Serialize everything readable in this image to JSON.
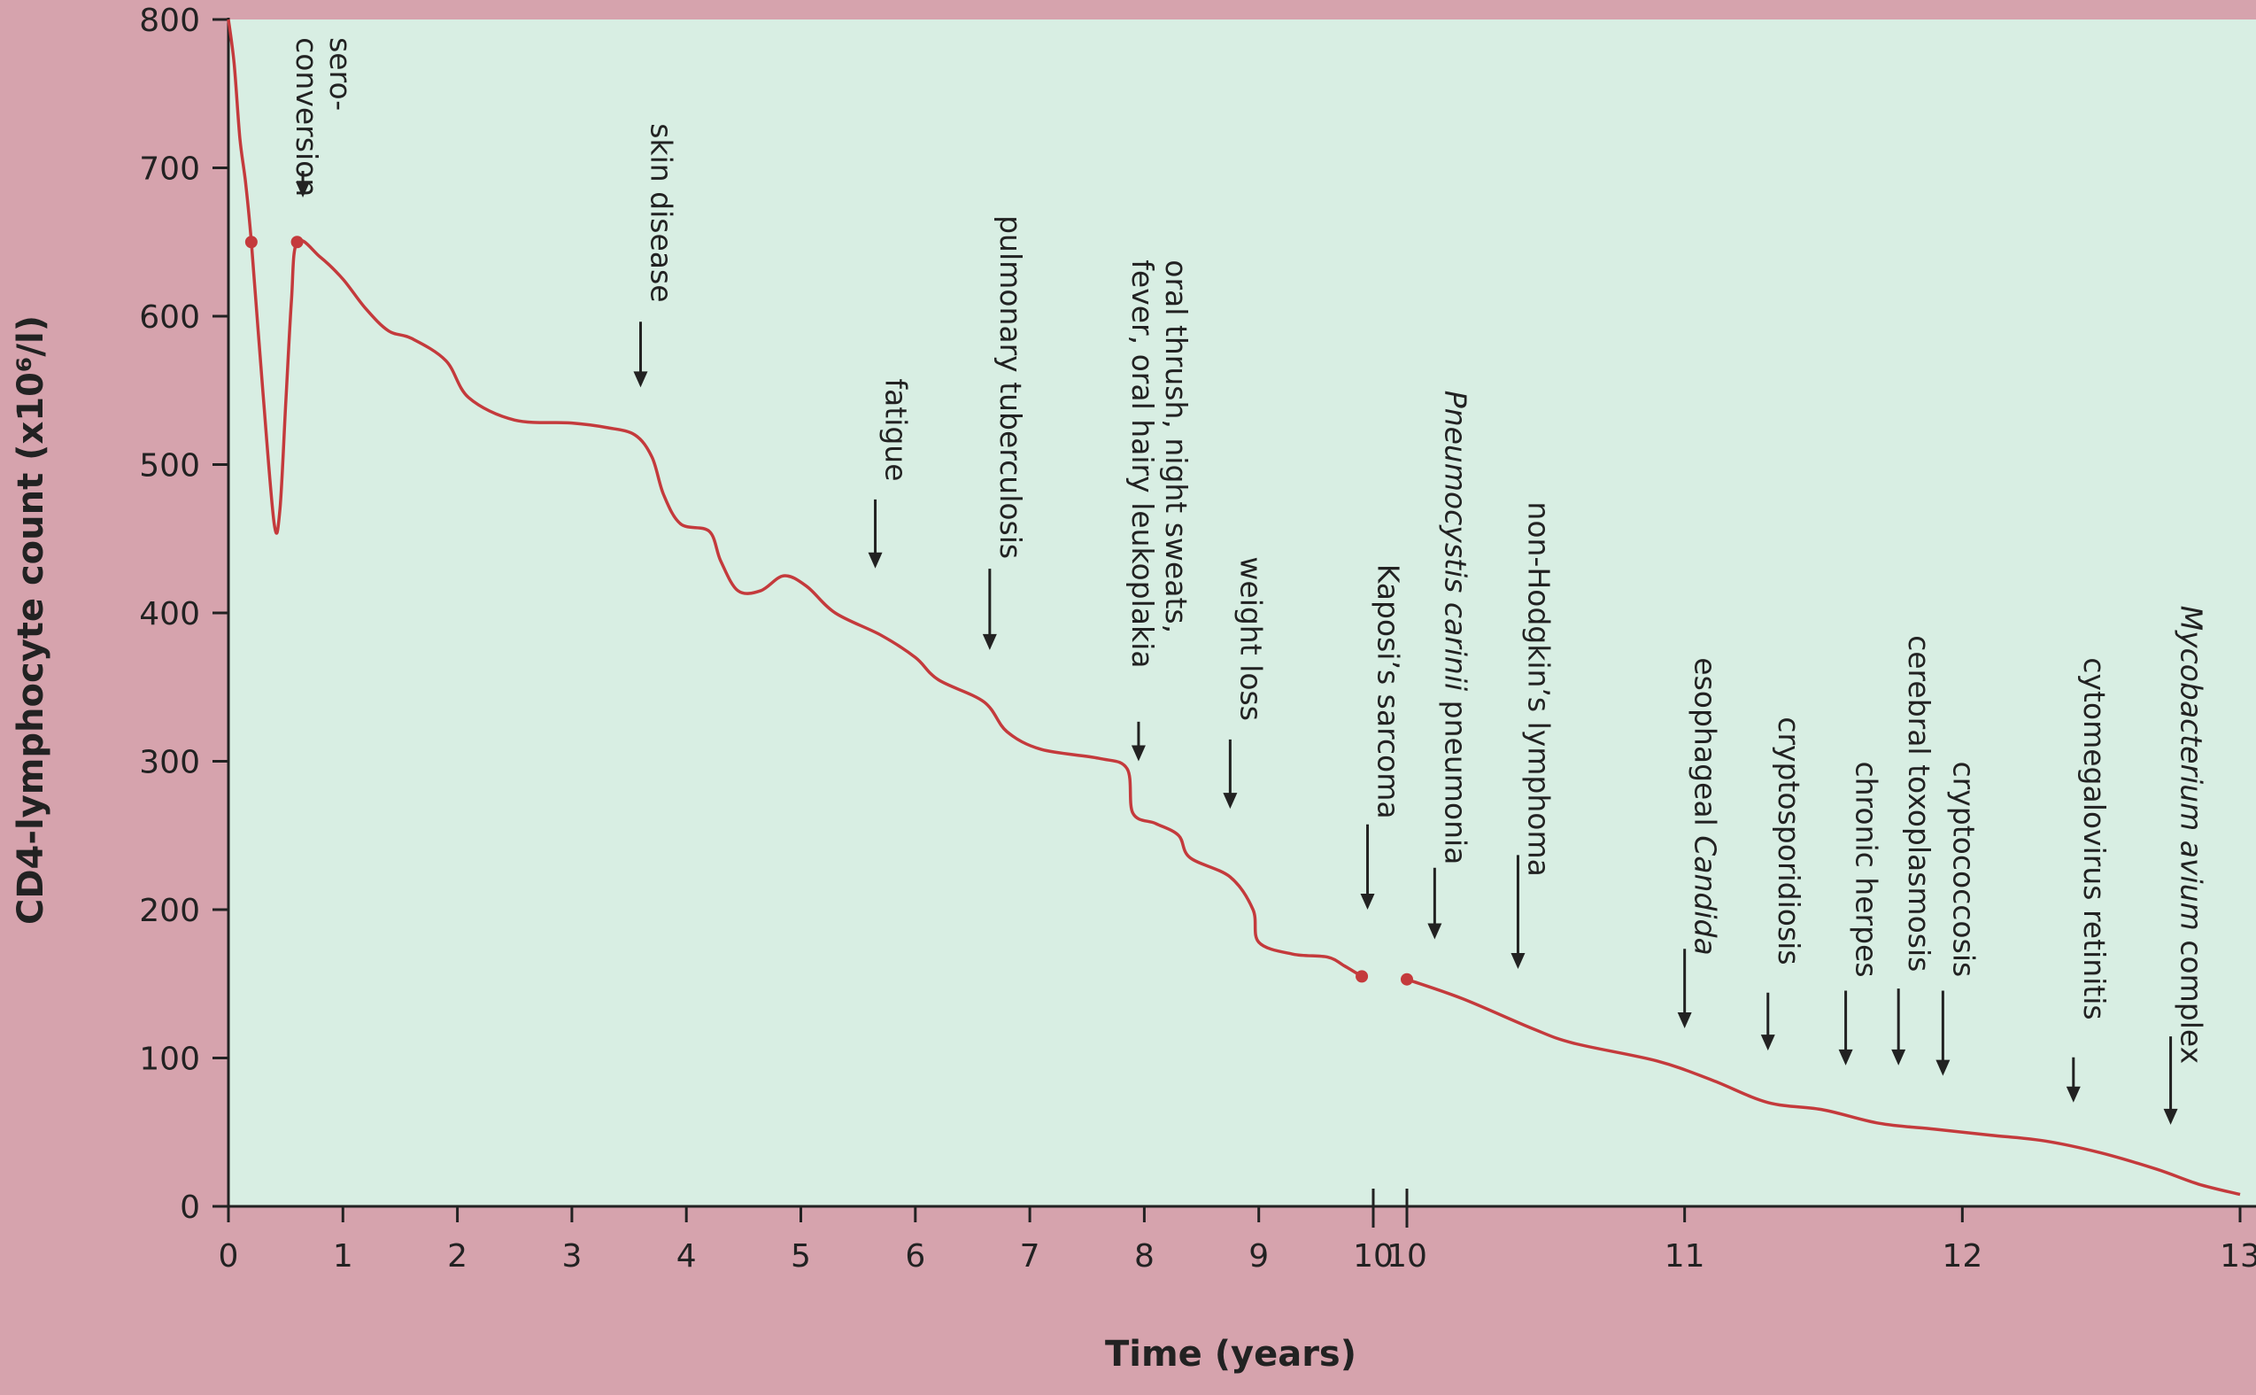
{
  "chart_data": {
    "type": "line",
    "xlabel": "Time (years)",
    "ylabel": "CD4-lymphocyte count (x10⁶/l)",
    "ylim": [
      0,
      800
    ],
    "yticks": [
      "0",
      "100",
      "200",
      "300",
      "400",
      "500",
      "600",
      "700",
      "800"
    ],
    "x_segment_1": {
      "xlim": [
        0,
        10
      ],
      "ticks": [
        "0",
        "1",
        "2",
        "3",
        "4",
        "5",
        "6",
        "7",
        "8",
        "9",
        "10"
      ]
    },
    "x_segment_2": {
      "xlim": [
        10,
        13
      ],
      "ticks": [
        "10",
        "11",
        "12",
        "13"
      ]
    },
    "colors": {
      "line": "#c43a3c",
      "plot_bg": "#d8eee3",
      "frame_bg": "#d6a3ad",
      "axis": "#222222"
    },
    "series": [
      {
        "segment": 1,
        "points": [
          [
            0.0,
            800
          ],
          [
            0.05,
            770
          ],
          [
            0.1,
            720
          ],
          [
            0.15,
            690
          ],
          [
            0.2,
            650
          ],
          [
            0.3,
            550
          ],
          [
            0.4,
            460
          ],
          [
            0.45,
            470
          ],
          [
            0.5,
            540
          ],
          [
            0.55,
            610
          ],
          [
            0.6,
            650
          ],
          [
            0.8,
            640
          ],
          [
            1.0,
            625
          ],
          [
            1.2,
            605
          ],
          [
            1.4,
            590
          ],
          [
            1.6,
            585
          ],
          [
            1.9,
            570
          ],
          [
            2.1,
            545
          ],
          [
            2.5,
            530
          ],
          [
            3.0,
            528
          ],
          [
            3.3,
            525
          ],
          [
            3.55,
            520
          ],
          [
            3.7,
            505
          ],
          [
            3.8,
            480
          ],
          [
            3.95,
            460
          ],
          [
            4.2,
            455
          ],
          [
            4.3,
            435
          ],
          [
            4.45,
            415
          ],
          [
            4.65,
            415
          ],
          [
            4.85,
            425
          ],
          [
            5.05,
            418
          ],
          [
            5.3,
            400
          ],
          [
            5.7,
            385
          ],
          [
            6.0,
            370
          ],
          [
            6.2,
            355
          ],
          [
            6.6,
            340
          ],
          [
            6.8,
            320
          ],
          [
            7.1,
            308
          ],
          [
            7.6,
            302
          ],
          [
            7.85,
            295
          ],
          [
            7.9,
            265
          ],
          [
            8.1,
            258
          ],
          [
            8.3,
            250
          ],
          [
            8.4,
            235
          ],
          [
            8.75,
            222
          ],
          [
            8.95,
            200
          ],
          [
            9.0,
            178
          ],
          [
            9.3,
            170
          ],
          [
            9.6,
            168
          ],
          [
            9.75,
            162
          ],
          [
            9.9,
            155
          ]
        ]
      },
      {
        "segment": 2,
        "points": [
          [
            10.0,
            153
          ],
          [
            10.2,
            140
          ],
          [
            10.45,
            120
          ],
          [
            10.6,
            110
          ],
          [
            10.9,
            98
          ],
          [
            11.1,
            85
          ],
          [
            11.3,
            70
          ],
          [
            11.5,
            65
          ],
          [
            11.7,
            56
          ],
          [
            11.9,
            52
          ],
          [
            12.1,
            48
          ],
          [
            12.3,
            44
          ],
          [
            12.5,
            36
          ],
          [
            12.7,
            25
          ],
          [
            12.85,
            15
          ],
          [
            13.0,
            8
          ]
        ]
      }
    ],
    "markers": [
      {
        "segment": 1,
        "x": 0.2,
        "y": 650
      },
      {
        "segment": 1,
        "x": 0.6,
        "y": 650
      },
      {
        "segment": 1,
        "x": 9.9,
        "y": 155
      },
      {
        "segment": 2,
        "x": 10.0,
        "y": 153
      }
    ],
    "annotations": [
      {
        "lines": [
          "sero-",
          "conversion"
        ],
        "segment": 1,
        "x": 0.65,
        "y_text_top": 788,
        "y_arrow_end": 680
      },
      {
        "lines": [
          "skin disease"
        ],
        "segment": 1,
        "x": 3.6,
        "y_text_top": 730,
        "y_arrow_end": 552
      },
      {
        "lines": [
          "fatigue"
        ],
        "segment": 1,
        "x": 5.65,
        "y_text_top": 558,
        "y_arrow_end": 430
      },
      {
        "lines": [
          "pulmonary tuberculosis"
        ],
        "segment": 1,
        "x": 6.65,
        "y_text_top": 668,
        "y_arrow_end": 375
      },
      {
        "lines": [
          "oral thrush, night sweats,",
          "fever, oral hairy leukoplakia"
        ],
        "segment": 1,
        "x": 7.95,
        "y_text_top": 638,
        "y_arrow_end": 300
      },
      {
        "lines": [
          "weight loss"
        ],
        "segment": 1,
        "x": 8.75,
        "y_text_top": 438,
        "y_arrow_end": 268
      },
      {
        "lines": [
          "Kaposi’s sarcoma"
        ],
        "segment": 1,
        "x": 9.95,
        "y_text_top": 433,
        "y_arrow_end": 200
      },
      {
        "lines": [
          "Pneumocystis carinii pneumonia"
        ],
        "italic": "Pneumocystis carinii",
        "segment": 2,
        "x": 10.1,
        "y_text_top": 550,
        "y_arrow_end": 180
      },
      {
        "lines": [
          "non-Hodgkin’s lymphoma"
        ],
        "segment": 2,
        "x": 10.4,
        "y_text_top": 475,
        "y_arrow_end": 160
      },
      {
        "lines": [
          "esophageal Candida"
        ],
        "italic": "Candida",
        "segment": 2,
        "x": 11.0,
        "y_text_top": 370,
        "y_arrow_end": 120
      },
      {
        "lines": [
          "cryptosporidiosis"
        ],
        "segment": 2,
        "x": 11.3,
        "y_text_top": 330,
        "y_arrow_end": 105
      },
      {
        "lines": [
          "chronic herpes"
        ],
        "segment": 2,
        "x": 11.58,
        "y_text_top": 300,
        "y_arrow_end": 95
      },
      {
        "lines": [
          "cerebral toxoplasmosis"
        ],
        "segment": 2,
        "x": 11.77,
        "y_text_top": 385,
        "y_arrow_end": 95
      },
      {
        "lines": [
          "cryptococcosis"
        ],
        "segment": 2,
        "x": 11.93,
        "y_text_top": 300,
        "y_arrow_end": 88
      },
      {
        "lines": [
          "cytomegalovirus retinitis"
        ],
        "segment": 2,
        "x": 12.4,
        "y_text_top": 370,
        "y_arrow_end": 70
      },
      {
        "lines": [
          "Mycobacterium avium complex"
        ],
        "italic": "Mycobacterium avium",
        "segment": 2,
        "x": 12.75,
        "y_text_top": 405,
        "y_arrow_end": 55
      }
    ]
  }
}
